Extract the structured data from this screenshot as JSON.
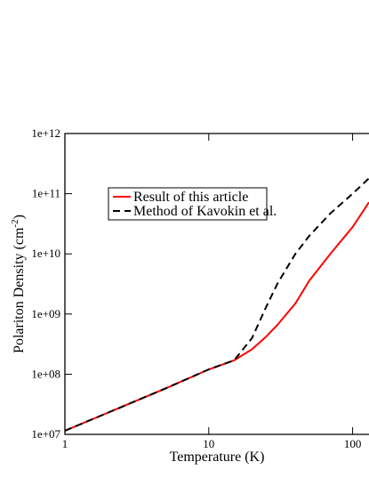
{
  "chart_data": {
    "type": "line",
    "x_label": "Temperature (K)",
    "y_label": [
      "Polariton Density (cm",
      "-2",
      ")"
    ],
    "x": [
      1,
      2,
      5,
      10,
      15,
      20,
      25,
      30,
      40,
      50,
      70,
      100,
      130
    ],
    "series": [
      {
        "name": "Result of this article",
        "color": "#ff0000",
        "dash": false,
        "values": [
          11500000,
          23000000,
          58000000,
          120000000,
          170000000,
          260000000,
          420000000,
          660000000,
          1500000000,
          3600000000,
          10000000000,
          28000000000,
          72000000000
        ]
      },
      {
        "name": "Method of Kavokin et al.",
        "color": "#000000",
        "dash": true,
        "values": [
          11500000,
          23000000,
          58000000,
          120000000,
          170000000,
          400000000,
          1300000000,
          3200000000,
          10000000000,
          20000000000,
          47000000000,
          100000000000,
          180000000000
        ]
      }
    ],
    "xlog": true,
    "ylog": true,
    "xlim": [
      1,
      130
    ],
    "ylim": [
      10000000,
      1000000000000
    ],
    "xticks": [
      1,
      10,
      100
    ],
    "yticks": [
      {
        "value": 10000000,
        "label": "1e+07"
      },
      {
        "value": 100000000,
        "label": "1e+08"
      },
      {
        "value": 1000000000,
        "label": "1e+09"
      },
      {
        "value": 10000000000,
        "label": "1e+10"
      },
      {
        "value": 100000000000,
        "label": "1e+11"
      },
      {
        "value": 1000000000000,
        "label": "1e+12"
      }
    ]
  }
}
